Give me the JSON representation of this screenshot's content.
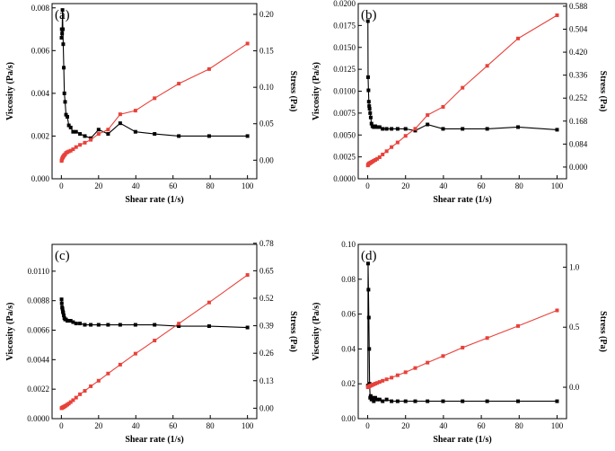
{
  "colors": {
    "viscosity": "#000000",
    "stress": "#e8413a",
    "axis": "#000000"
  },
  "chart_data": [
    {
      "type": "line",
      "panel": "(a)",
      "xlabel": "Shear rate (1/s)",
      "ylabel_left": "Viscosity (Pa/s)",
      "ylabel_right": "Stress (Pa)",
      "xlim": [
        -5,
        105
      ],
      "xticks": [
        0,
        20,
        40,
        60,
        80,
        100
      ],
      "ylim_left": [
        0,
        0.0082
      ],
      "yticks_left": [
        0.0,
        0.002,
        0.004,
        0.006,
        0.008
      ],
      "ytick_labels_left": [
        "0.000",
        "0.002",
        "0.004",
        "0.006",
        "0.008"
      ],
      "ylim_right": [
        -0.0255,
        0.2148
      ],
      "yticks_right": [
        0.0,
        0.05,
        0.1,
        0.15,
        0.2
      ],
      "ytick_labels_right": [
        "0.00",
        "0.05",
        "0.10",
        "0.15",
        "0.20"
      ],
      "series": [
        {
          "name": "Viscosity",
          "axis": "left",
          "color": "#000000",
          "x": [
            0.1,
            0.2,
            0.4,
            0.6,
            0.8,
            1.0,
            1.3,
            1.6,
            2.0,
            2.5,
            3.2,
            4.0,
            5.0,
            6.3,
            7.9,
            10.0,
            12.6,
            15.8,
            20.0,
            25.1,
            31.6,
            39.8,
            50.1,
            63.1,
            79.4,
            100
          ],
          "y": [
            0.0066,
            0.007,
            0.0068,
            0.0079,
            0.007,
            0.0063,
            0.0052,
            0.004,
            0.0036,
            0.003,
            0.0029,
            0.0025,
            0.0024,
            0.0022,
            0.0022,
            0.0021,
            0.002,
            0.0019,
            0.0023,
            0.0021,
            0.0026,
            0.0022,
            0.0021,
            0.002,
            0.002,
            0.002
          ]
        },
        {
          "name": "Stress",
          "axis": "right",
          "color": "#e8413a",
          "x": [
            0.1,
            0.2,
            0.4,
            0.6,
            0.8,
            1.0,
            1.3,
            1.6,
            2.0,
            2.5,
            3.2,
            4.0,
            5.0,
            6.3,
            7.9,
            10.0,
            12.6,
            15.8,
            20.0,
            25.1,
            31.6,
            39.8,
            50.1,
            63.1,
            79.4,
            100
          ],
          "y": [
            -0.001,
            0.0,
            0.002,
            0.003,
            0.004,
            0.005,
            0.006,
            0.007,
            0.008,
            0.01,
            0.011,
            0.012,
            0.013,
            0.015,
            0.018,
            0.021,
            0.024,
            0.028,
            0.036,
            0.042,
            0.063,
            0.068,
            0.085,
            0.105,
            0.125,
            0.16
          ]
        }
      ]
    },
    {
      "type": "line",
      "panel": "(b)",
      "xlabel": "Shear rate (1/s)",
      "ylabel_left": "Viscosity (Pa/s)",
      "ylabel_right": "Stress (Pa)",
      "xlim": [
        -5,
        105
      ],
      "xticks": [
        0,
        20,
        40,
        60,
        80,
        100
      ],
      "ylim_left": [
        0,
        0.02
      ],
      "yticks_left": [
        0.0,
        0.0025,
        0.005,
        0.0075,
        0.01,
        0.0125,
        0.015,
        0.0175,
        0.02
      ],
      "ytick_labels_left": [
        "0.0000",
        "0.0025",
        "0.0050",
        "0.0075",
        "0.0100",
        "0.0125",
        "0.0150",
        "0.0175",
        "0.0200"
      ],
      "ylim_right": [
        -0.0429,
        0.5976
      ],
      "yticks_right": [
        0.0,
        0.084,
        0.168,
        0.252,
        0.336,
        0.42,
        0.504,
        0.588
      ],
      "ytick_labels_right": [
        "0.000",
        "0.084",
        "0.168",
        "0.252",
        "0.336",
        "0.420",
        "0.504",
        "0.588"
      ],
      "series": [
        {
          "name": "Viscosity",
          "axis": "left",
          "color": "#000000",
          "x": [
            0.1,
            0.2,
            0.4,
            0.6,
            0.8,
            1.0,
            1.3,
            1.6,
            2.0,
            2.5,
            3.2,
            4.0,
            5.0,
            6.3,
            7.9,
            10.0,
            12.6,
            15.8,
            20.0,
            25.1,
            31.6,
            39.8,
            50.1,
            63.1,
            79.4,
            100
          ],
          "y": [
            0.018,
            0.0116,
            0.0101,
            0.0088,
            0.0083,
            0.008,
            0.0075,
            0.007,
            0.0063,
            0.006,
            0.0059,
            0.006,
            0.0059,
            0.0059,
            0.0057,
            0.0057,
            0.0057,
            0.0057,
            0.0057,
            0.0055,
            0.0062,
            0.0057,
            0.0057,
            0.0057,
            0.0059,
            0.0056
          ]
        },
        {
          "name": "Stress",
          "axis": "right",
          "color": "#e8413a",
          "x": [
            0.1,
            0.2,
            0.4,
            0.6,
            0.8,
            1.0,
            1.3,
            1.6,
            2.0,
            2.5,
            3.2,
            4.0,
            5.0,
            6.3,
            7.9,
            10.0,
            12.6,
            15.8,
            20.0,
            25.1,
            31.6,
            39.8,
            50.1,
            63.1,
            79.4,
            100
          ],
          "y": [
            0.006,
            0.008,
            0.01,
            0.012,
            0.013,
            0.014,
            0.015,
            0.016,
            0.018,
            0.02,
            0.023,
            0.026,
            0.03,
            0.036,
            0.046,
            0.058,
            0.073,
            0.09,
            0.114,
            0.14,
            0.19,
            0.22,
            0.29,
            0.37,
            0.47,
            0.555
          ]
        }
      ]
    },
    {
      "type": "line",
      "panel": "(c)",
      "xlabel": "Shear rate (1/s)",
      "ylabel_left": "Viscosity (Pa/s)",
      "ylabel_right": "Stress (Pa)",
      "xlim": [
        -5,
        105
      ],
      "xticks": [
        0,
        20,
        40,
        60,
        80,
        100
      ],
      "ylim_left": [
        0,
        0.013
      ],
      "yticks_left": [
        0.0,
        0.0022,
        0.0044,
        0.0066,
        0.0088,
        0.011
      ],
      "ytick_labels_left": [
        "0.0000",
        "0.0022",
        "0.0044",
        "0.0066",
        "0.0088",
        "0.0110"
      ],
      "ylim_right": [
        -0.0494,
        0.7748
      ],
      "yticks_right": [
        0.0,
        0.13,
        0.26,
        0.39,
        0.52,
        0.65,
        0.78
      ],
      "ytick_labels_right": [
        "0.00",
        "0.13",
        "0.26",
        "0.39",
        "0.52",
        "0.65",
        "0.78"
      ],
      "series": [
        {
          "name": "Viscosity",
          "axis": "left",
          "color": "#000000",
          "x": [
            0.1,
            0.2,
            0.4,
            0.6,
            0.8,
            1.0,
            1.3,
            1.6,
            2.0,
            2.5,
            3.2,
            4.0,
            5.0,
            6.3,
            7.9,
            10.0,
            12.6,
            15.8,
            20.0,
            25.1,
            31.6,
            39.8,
            50.1,
            63.1,
            79.4,
            100
          ],
          "y": [
            0.0089,
            0.0086,
            0.0083,
            0.0082,
            0.008,
            0.0079,
            0.0077,
            0.0075,
            0.0074,
            0.0074,
            0.0073,
            0.0073,
            0.0073,
            0.0072,
            0.0071,
            0.0071,
            0.007,
            0.007,
            0.007,
            0.007,
            0.007,
            0.007,
            0.007,
            0.0069,
            0.0069,
            0.0068
          ]
        },
        {
          "name": "Stress",
          "axis": "right",
          "color": "#e8413a",
          "x": [
            0.1,
            0.2,
            0.4,
            0.6,
            0.8,
            1.0,
            1.3,
            1.6,
            2.0,
            2.5,
            3.2,
            4.0,
            5.0,
            6.3,
            7.9,
            10.0,
            12.6,
            15.8,
            20.0,
            25.1,
            31.6,
            39.8,
            50.1,
            63.1,
            79.4,
            100
          ],
          "y": [
            0.0,
            0.001,
            0.002,
            0.003,
            0.004,
            0.005,
            0.006,
            0.008,
            0.01,
            0.013,
            0.017,
            0.022,
            0.029,
            0.038,
            0.05,
            0.066,
            0.082,
            0.104,
            0.13,
            0.164,
            0.206,
            0.258,
            0.32,
            0.4,
            0.5,
            0.63
          ]
        }
      ]
    },
    {
      "type": "line",
      "panel": "(d)",
      "xlabel": "Shear rate (1/s)",
      "ylabel_left": "Viscosity (Pa/s)",
      "ylabel_right": "Stress (Pa)",
      "xlim": [
        -5,
        105
      ],
      "xticks": [
        0,
        20,
        40,
        60,
        80,
        100
      ],
      "ylim_left": [
        0,
        0.1
      ],
      "yticks_left": [
        0.0,
        0.02,
        0.04,
        0.06,
        0.08,
        0.1
      ],
      "ytick_labels_left": [
        "0.00",
        "0.02",
        "0.04",
        "0.06",
        "0.08",
        "0.10"
      ],
      "ylim_right": [
        -0.2615,
        1.1897
      ],
      "yticks_right": [
        0.0,
        0.5,
        1.0
      ],
      "ytick_labels_right": [
        "0.0",
        "0.5",
        "1.0"
      ],
      "series": [
        {
          "name": "Viscosity",
          "axis": "left",
          "color": "#000000",
          "x": [
            0.1,
            0.2,
            0.4,
            0.6,
            0.8,
            1.0,
            1.3,
            1.6,
            2.0,
            2.5,
            3.2,
            4.0,
            5.0,
            6.3,
            7.9,
            10.0,
            12.6,
            15.8,
            20.0,
            25.1,
            31.6,
            39.8,
            50.1,
            63.1,
            79.4,
            100
          ],
          "y": [
            0.019,
            0.089,
            0.074,
            0.058,
            0.04,
            0.02,
            0.012,
            0.013,
            0.011,
            0.012,
            0.01,
            0.012,
            0.011,
            0.011,
            0.01,
            0.011,
            0.01,
            0.01,
            0.01,
            0.01,
            0.01,
            0.01,
            0.01,
            0.01,
            0.01,
            0.01
          ]
        },
        {
          "name": "Stress",
          "axis": "right",
          "color": "#e8413a",
          "x": [
            0.1,
            0.2,
            0.4,
            0.6,
            0.8,
            1.0,
            1.3,
            1.6,
            2.0,
            2.5,
            3.2,
            4.0,
            5.0,
            6.3,
            7.9,
            10.0,
            12.6,
            15.8,
            20.0,
            25.1,
            31.6,
            39.8,
            50.1,
            63.1,
            79.4,
            100
          ],
          "y": [
            0.0,
            0.002,
            0.004,
            0.006,
            0.008,
            0.01,
            0.012,
            0.014,
            0.017,
            0.02,
            0.024,
            0.03,
            0.036,
            0.044,
            0.054,
            0.066,
            0.08,
            0.1,
            0.125,
            0.16,
            0.205,
            0.26,
            0.33,
            0.41,
            0.51,
            0.64
          ]
        }
      ]
    }
  ]
}
